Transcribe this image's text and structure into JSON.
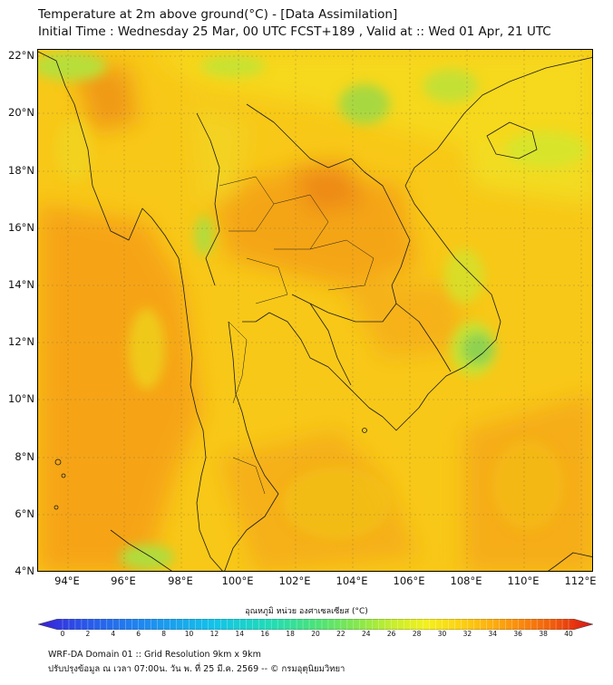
{
  "title_line1": "Temperature at 2m above ground(°C) - [Data Assimilation]",
  "title_line2": "Initial Time : Wednesday 25 Mar, 00 UTC FCST+189 , Valid at :: Wed 01 Apr, 21 UTC",
  "map": {
    "lat_labels": [
      "22°N",
      "20°N",
      "18°N",
      "16°N",
      "14°N",
      "12°N",
      "10°N",
      "8°N",
      "6°N",
      "4°N"
    ],
    "lon_labels": [
      "94°E",
      "96°E",
      "98°E",
      "100°E",
      "102°E",
      "104°E",
      "106°E",
      "108°E",
      "110°E",
      "112°E"
    ],
    "lat_range": [
      4,
      22
    ],
    "lon_range": [
      93,
      112.5
    ]
  },
  "colorbar": {
    "title": "อุณหภูมิ หน่วย องศาเซลเซียส (°C)",
    "tick_labels": [
      "0",
      "2",
      "4",
      "6",
      "8",
      "10",
      "12",
      "14",
      "16",
      "18",
      "20",
      "22",
      "24",
      "26",
      "28",
      "30",
      "32",
      "34",
      "36",
      "38",
      "40"
    ],
    "range": [
      0,
      40
    ],
    "colors": [
      "#3a1fd6",
      "#2a54e8",
      "#1e8ef0",
      "#14c4e8",
      "#22dcb4",
      "#4ae27a",
      "#8ae84a",
      "#c8ee2e",
      "#f4f01e",
      "#fcd214",
      "#fcae10",
      "#f8820e",
      "#f05a0c",
      "#e43010",
      "#d81420"
    ]
  },
  "footer_line1": "WRF-DA Domain 01 :: Grid Resolution 9km x 9km",
  "footer_line2": "ปรับปรุงข้อมูล ณ เวลา 07:00น. วัน พ. ที่ 25 มี.ค. 2569 -- © กรมอุตุนิยมวิทยา"
}
